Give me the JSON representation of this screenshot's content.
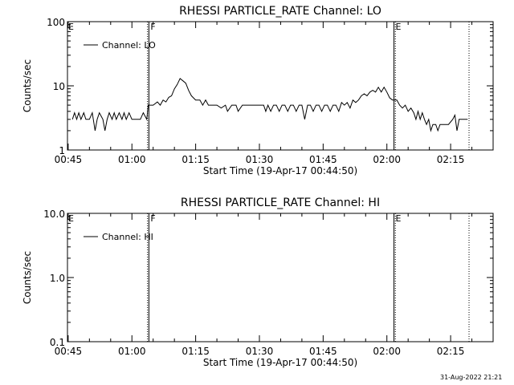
{
  "footer": {
    "date_stamp": "31-Aug-2022 21:21"
  },
  "chart_data": [
    {
      "type": "line",
      "title": "RHESSI PARTICLE_RATE Channel: LO",
      "xlabel": "Start Time (19-Apr-17 00:44:50)",
      "ylabel": "Counts/sec",
      "yscale": "log",
      "ylim": [
        1,
        100
      ],
      "xlim": [
        "00:44:50",
        "02:25:00"
      ],
      "x_ticks": [
        "00:45",
        "01:00",
        "01:15",
        "01:30",
        "01:45",
        "02:00",
        "02:15"
      ],
      "y_ticks": [
        "1",
        "10",
        "100"
      ],
      "legend": {
        "position": "top-left",
        "entries": [
          "Channel: LO"
        ]
      },
      "markers": [
        {
          "time": "01:03:40",
          "style": "dotted",
          "label": ""
        },
        {
          "time": "01:04:00",
          "style": "solid",
          "label": "F"
        },
        {
          "time": "02:01:40",
          "style": "solid",
          "label": "E"
        },
        {
          "time": "02:02:00",
          "style": "dotted",
          "label": ""
        },
        {
          "time": "02:19:20",
          "style": "dotted",
          "label": ""
        }
      ],
      "edge_labels": [
        "E"
      ],
      "series": [
        {
          "name": "Channel: LO",
          "points": [
            [
              "00:46:00",
              3
            ],
            [
              "00:46:30",
              3.8
            ],
            [
              "00:47:00",
              3
            ],
            [
              "00:47:30",
              3.8
            ],
            [
              "00:48:00",
              3
            ],
            [
              "00:48:40",
              3.8
            ],
            [
              "00:49:10",
              3
            ],
            [
              "00:50:00",
              3
            ],
            [
              "00:50:40",
              3.8
            ],
            [
              "00:51:20",
              2
            ],
            [
              "00:51:50",
              3
            ],
            [
              "00:52:20",
              3.8
            ],
            [
              "00:53:10",
              3
            ],
            [
              "00:53:40",
              2
            ],
            [
              "00:54:10",
              3
            ],
            [
              "00:54:40",
              3.8
            ],
            [
              "00:55:20",
              3
            ],
            [
              "00:55:50",
              3.8
            ],
            [
              "00:56:20",
              3
            ],
            [
              "00:57:00",
              3.8
            ],
            [
              "00:57:40",
              3
            ],
            [
              "00:58:10",
              3.8
            ],
            [
              "00:58:40",
              3
            ],
            [
              "00:59:20",
              3.8
            ],
            [
              "01:00:00",
              3
            ],
            [
              "01:00:40",
              3
            ],
            [
              "01:01:20",
              3
            ],
            [
              "01:02:00",
              3
            ],
            [
              "01:02:40",
              3.8
            ],
            [
              "01:03:30",
              3
            ],
            [
              "01:03:50",
              5
            ],
            [
              "01:05:00",
              5
            ],
            [
              "01:06:00",
              5.6
            ],
            [
              "01:06:40",
              5
            ],
            [
              "01:07:20",
              6
            ],
            [
              "01:08:00",
              5.6
            ],
            [
              "01:08:40",
              6.6
            ],
            [
              "01:09:20",
              7
            ],
            [
              "01:10:00",
              9
            ],
            [
              "01:10:40",
              10.5
            ],
            [
              "01:11:20",
              13
            ],
            [
              "01:12:00",
              12
            ],
            [
              "01:12:40",
              11
            ],
            [
              "01:13:20",
              8.5
            ],
            [
              "01:14:00",
              7
            ],
            [
              "01:15:00",
              6
            ],
            [
              "01:16:00",
              6
            ],
            [
              "01:16:40",
              5
            ],
            [
              "01:17:20",
              6
            ],
            [
              "01:18:00",
              5
            ],
            [
              "01:19:00",
              5
            ],
            [
              "01:20:00",
              5
            ],
            [
              "01:21:00",
              4.5
            ],
            [
              "01:22:00",
              5
            ],
            [
              "01:22:30",
              4
            ],
            [
              "01:23:30",
              5
            ],
            [
              "01:24:30",
              5
            ],
            [
              "01:25:00",
              4
            ],
            [
              "01:26:00",
              5
            ],
            [
              "01:27:00",
              5
            ],
            [
              "01:28:00",
              5
            ],
            [
              "01:29:00",
              5
            ],
            [
              "01:30:00",
              5
            ],
            [
              "01:31:00",
              5
            ],
            [
              "01:31:30",
              4
            ],
            [
              "01:32:00",
              5
            ],
            [
              "01:32:40",
              4
            ],
            [
              "01:33:20",
              5
            ],
            [
              "01:34:00",
              5
            ],
            [
              "01:34:40",
              4
            ],
            [
              "01:35:20",
              5
            ],
            [
              "01:36:00",
              5
            ],
            [
              "01:36:40",
              4
            ],
            [
              "01:37:20",
              5
            ],
            [
              "01:38:00",
              5
            ],
            [
              "01:38:40",
              4
            ],
            [
              "01:39:20",
              5
            ],
            [
              "01:40:00",
              5
            ],
            [
              "01:40:40",
              3
            ],
            [
              "01:41:20",
              5
            ],
            [
              "01:42:00",
              5
            ],
            [
              "01:42:40",
              4
            ],
            [
              "01:43:20",
              5
            ],
            [
              "01:44:00",
              5
            ],
            [
              "01:44:40",
              4
            ],
            [
              "01:45:20",
              5
            ],
            [
              "01:46:00",
              5
            ],
            [
              "01:46:40",
              4
            ],
            [
              "01:47:20",
              5
            ],
            [
              "01:48:00",
              5
            ],
            [
              "01:48:40",
              4
            ],
            [
              "01:49:20",
              5.5
            ],
            [
              "01:50:00",
              5
            ],
            [
              "01:50:40",
              5.5
            ],
            [
              "01:51:20",
              4.5
            ],
            [
              "01:52:00",
              6
            ],
            [
              "01:52:40",
              5.5
            ],
            [
              "01:53:20",
              6
            ],
            [
              "01:54:00",
              7
            ],
            [
              "01:54:40",
              7.5
            ],
            [
              "01:55:20",
              7
            ],
            [
              "01:56:00",
              8
            ],
            [
              "01:56:40",
              8.5
            ],
            [
              "01:57:20",
              8
            ],
            [
              "01:58:00",
              9.5
            ],
            [
              "01:58:40",
              8
            ],
            [
              "01:59:20",
              9.5
            ],
            [
              "02:00:00",
              8
            ],
            [
              "02:00:40",
              6.5
            ],
            [
              "02:01:20",
              6
            ],
            [
              "02:02:20",
              6
            ],
            [
              "02:03:00",
              5
            ],
            [
              "02:03:40",
              4.5
            ],
            [
              "02:04:20",
              5
            ],
            [
              "02:05:00",
              4
            ],
            [
              "02:05:40",
              4.5
            ],
            [
              "02:06:20",
              3.8
            ],
            [
              "02:06:50",
              3
            ],
            [
              "02:07:20",
              4
            ],
            [
              "02:07:50",
              3
            ],
            [
              "02:08:20",
              3.8
            ],
            [
              "02:08:50",
              3
            ],
            [
              "02:09:20",
              2.5
            ],
            [
              "02:09:50",
              3
            ],
            [
              "02:10:20",
              2
            ],
            [
              "02:10:50",
              2.5
            ],
            [
              "02:11:30",
              2.5
            ],
            [
              "02:12:00",
              2
            ],
            [
              "02:12:30",
              2.5
            ],
            [
              "02:13:30",
              2.5
            ],
            [
              "02:14:30",
              2.5
            ],
            [
              "02:15:30",
              3
            ],
            [
              "02:16:00",
              3.5
            ],
            [
              "02:16:30",
              2
            ],
            [
              "02:17:00",
              3
            ],
            [
              "02:18:00",
              3
            ],
            [
              "02:19:00",
              3
            ]
          ]
        }
      ]
    },
    {
      "type": "line",
      "title": "RHESSI PARTICLE_RATE Channel: HI",
      "xlabel": "Start Time (19-Apr-17 00:44:50)",
      "ylabel": "Counts/sec",
      "yscale": "log",
      "ylim": [
        0.1,
        10
      ],
      "xlim": [
        "00:44:50",
        "02:25:00"
      ],
      "x_ticks": [
        "00:45",
        "01:00",
        "01:15",
        "01:30",
        "01:45",
        "02:00",
        "02:15"
      ],
      "y_ticks": [
        "0.1",
        "1.0",
        "10.0"
      ],
      "legend": {
        "position": "top-left",
        "entries": [
          "Channel: HI"
        ]
      },
      "markers": [
        {
          "time": "01:03:40",
          "style": "dotted",
          "label": ""
        },
        {
          "time": "01:04:00",
          "style": "solid",
          "label": "F"
        },
        {
          "time": "02:01:40",
          "style": "solid",
          "label": "E"
        },
        {
          "time": "02:02:00",
          "style": "dotted",
          "label": ""
        },
        {
          "time": "02:19:20",
          "style": "dotted",
          "label": ""
        }
      ],
      "edge_labels": [
        "E"
      ],
      "series": [
        {
          "name": "Channel: HI",
          "points": []
        }
      ]
    }
  ]
}
